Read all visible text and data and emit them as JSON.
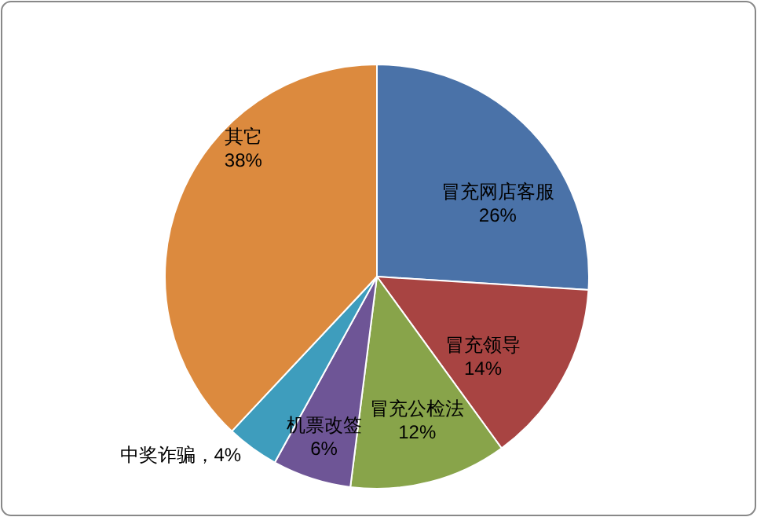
{
  "chart_data": {
    "type": "pie",
    "categories": [
      "冒充网店客服",
      "冒充领导",
      "冒充公检法",
      "机票改签",
      "中奖诈骗",
      "其它"
    ],
    "values": [
      26,
      14,
      12,
      6,
      4,
      38
    ],
    "value_labels": [
      "26%",
      "14%",
      "12%",
      "6%",
      "4%",
      "38%"
    ],
    "colors": [
      "#4a72a8",
      "#a84442",
      "#88a44a",
      "#6e5596",
      "#3e9dbd",
      "#dc8a3e"
    ]
  }
}
